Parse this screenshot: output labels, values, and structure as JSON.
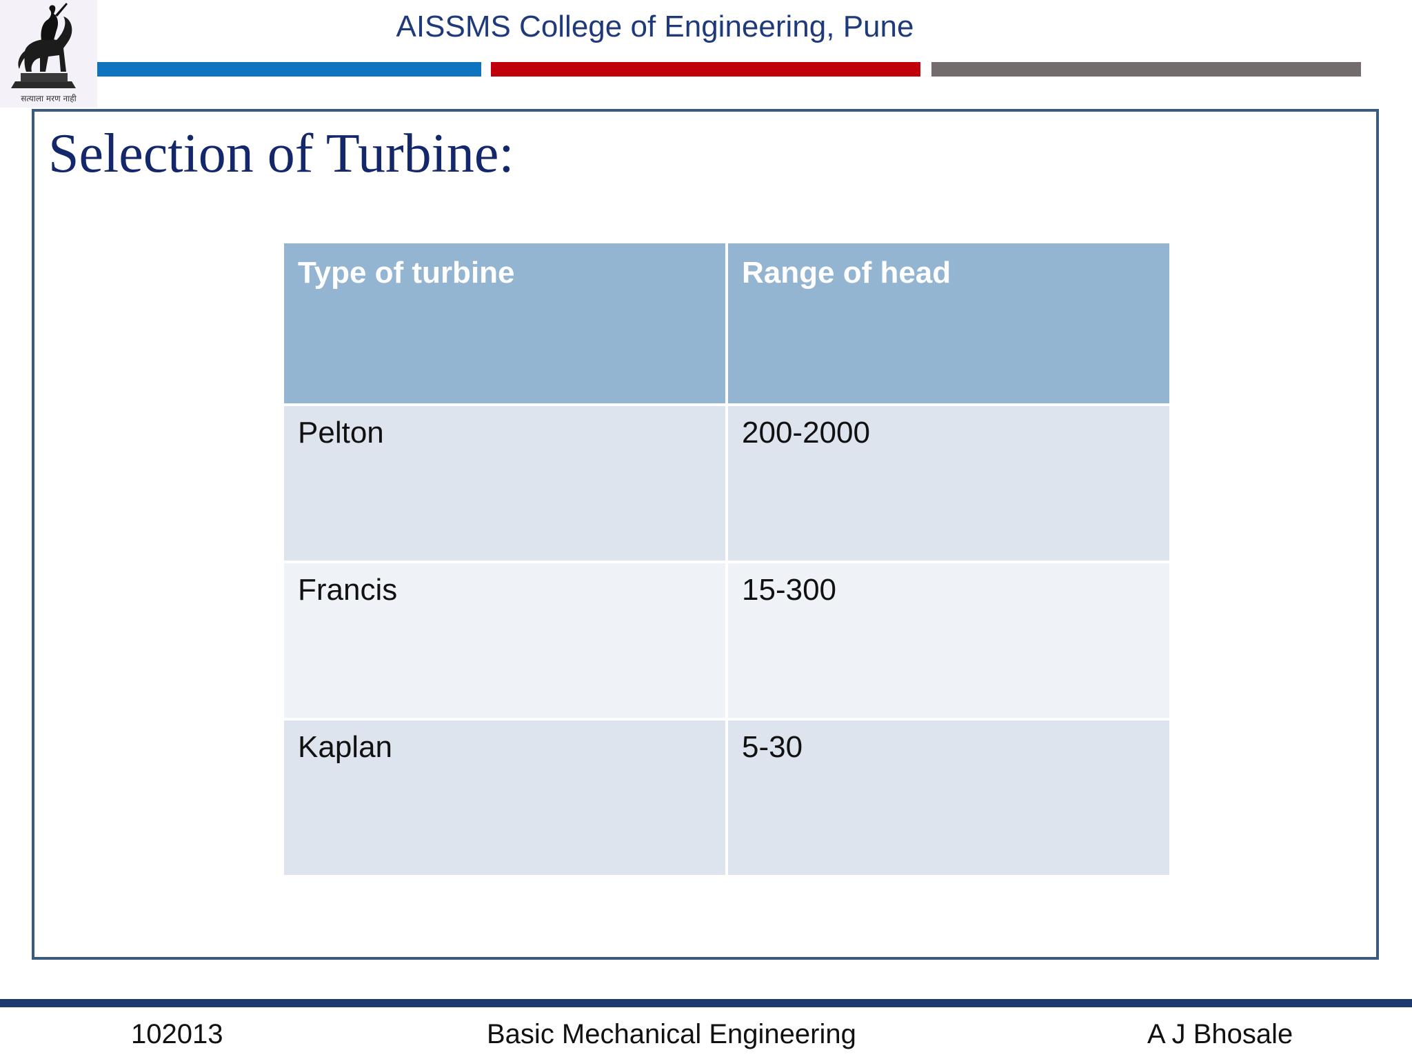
{
  "header": {
    "college_name": "AISSMS College of Engineering, Pune",
    "logo": {
      "icon": "equestrian-statue-icon",
      "motto": "सत्याला मरण नाही"
    },
    "stripe_colors": [
      "#0e74bf",
      "#c0000b",
      "#736b6c"
    ]
  },
  "slide": {
    "title": "Selection of Turbine:",
    "table": {
      "headers": [
        "Type of turbine",
        "Range of head"
      ],
      "rows": [
        [
          "Pelton",
          "200-2000"
        ],
        [
          "Francis",
          "15-300"
        ],
        [
          "Kaplan",
          "5-30"
        ]
      ]
    }
  },
  "footer": {
    "code": "102013",
    "course": "Basic Mechanical Engineering",
    "author": "A J Bhosale"
  },
  "colors": {
    "title": "#13276a",
    "college_name": "#1f3a7a",
    "frame_border": "#3b5a80",
    "table_header": "#94b5d2",
    "table_band_dark": "#dde4ee",
    "table_band_light": "#eff2f7",
    "footer_bar": "#1c3a6e"
  }
}
